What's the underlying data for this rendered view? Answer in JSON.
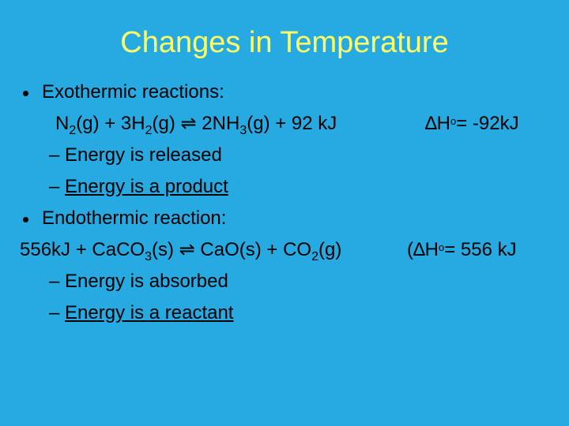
{
  "slide": {
    "title": "Changes in Temperature",
    "exo": {
      "heading": "Exothermic reactions:",
      "equation": [
        "N",
        "2",
        "(g) + 3H",
        "2",
        "(g) ⇌ 2NH",
        "3",
        "(g) + 92 kJ"
      ],
      "enthalpy": [
        "∆H",
        "o",
        "= -92kJ"
      ],
      "points": [
        {
          "dash": "–",
          "text": "Energy is released"
        },
        {
          "dash": "–",
          "text": "Energy is a product"
        }
      ]
    },
    "endo": {
      "heading": "Endothermic reaction:",
      "equation": [
        "556kJ + CaCO",
        "3",
        "(s) ⇌ CaO(s) + CO",
        "2",
        "(g)"
      ],
      "enthalpy": [
        "(∆H",
        "o",
        "= 556 kJ"
      ],
      "points": [
        {
          "dash": "–",
          "text": "Energy is absorbed"
        },
        {
          "dash": "–",
          "text": "Energy is a reactant"
        }
      ]
    }
  }
}
